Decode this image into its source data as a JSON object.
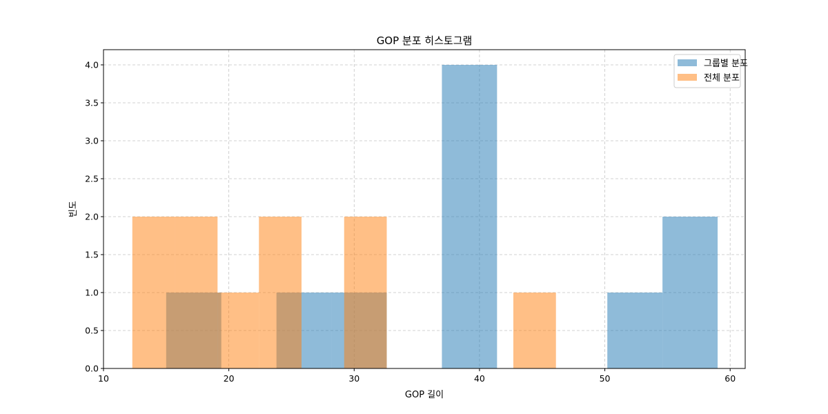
{
  "chart_data": {
    "type": "bar",
    "title": "GOP 분포 히스토그램",
    "xlabel": "GOP 길이",
    "ylabel": "빈도",
    "xlim": [
      10,
      61.2
    ],
    "ylim": [
      0,
      4.2
    ],
    "xticks": [
      10,
      20,
      30,
      40,
      50,
      60
    ],
    "yticks": [
      0.0,
      0.5,
      1.0,
      1.5,
      2.0,
      2.5,
      3.0,
      3.5,
      4.0
    ],
    "grid": true,
    "legend_position": "top-right",
    "series": [
      {
        "name": "그룹별 분포",
        "color": "#1f77b4",
        "bins": [
          {
            "x0": 15.0,
            "x1": 19.4,
            "count": 1
          },
          {
            "x0": 23.8,
            "x1": 28.2,
            "count": 1
          },
          {
            "x0": 28.2,
            "x1": 32.6,
            "count": 1
          },
          {
            "x0": 37.0,
            "x1": 41.4,
            "count": 4
          },
          {
            "x0": 50.2,
            "x1": 54.6,
            "count": 1
          },
          {
            "x0": 54.6,
            "x1": 59.0,
            "count": 2
          }
        ]
      },
      {
        "name": "전체 분포",
        "color": "#ff7f0e",
        "bins": [
          {
            "x0": 12.3,
            "x1": 15.7,
            "count": 2
          },
          {
            "x0": 15.7,
            "x1": 19.1,
            "count": 2
          },
          {
            "x0": 19.1,
            "x1": 22.4,
            "count": 1
          },
          {
            "x0": 22.4,
            "x1": 25.8,
            "count": 2
          },
          {
            "x0": 29.2,
            "x1": 32.6,
            "count": 2
          },
          {
            "x0": 42.7,
            "x1": 46.1,
            "count": 1
          }
        ]
      }
    ]
  }
}
